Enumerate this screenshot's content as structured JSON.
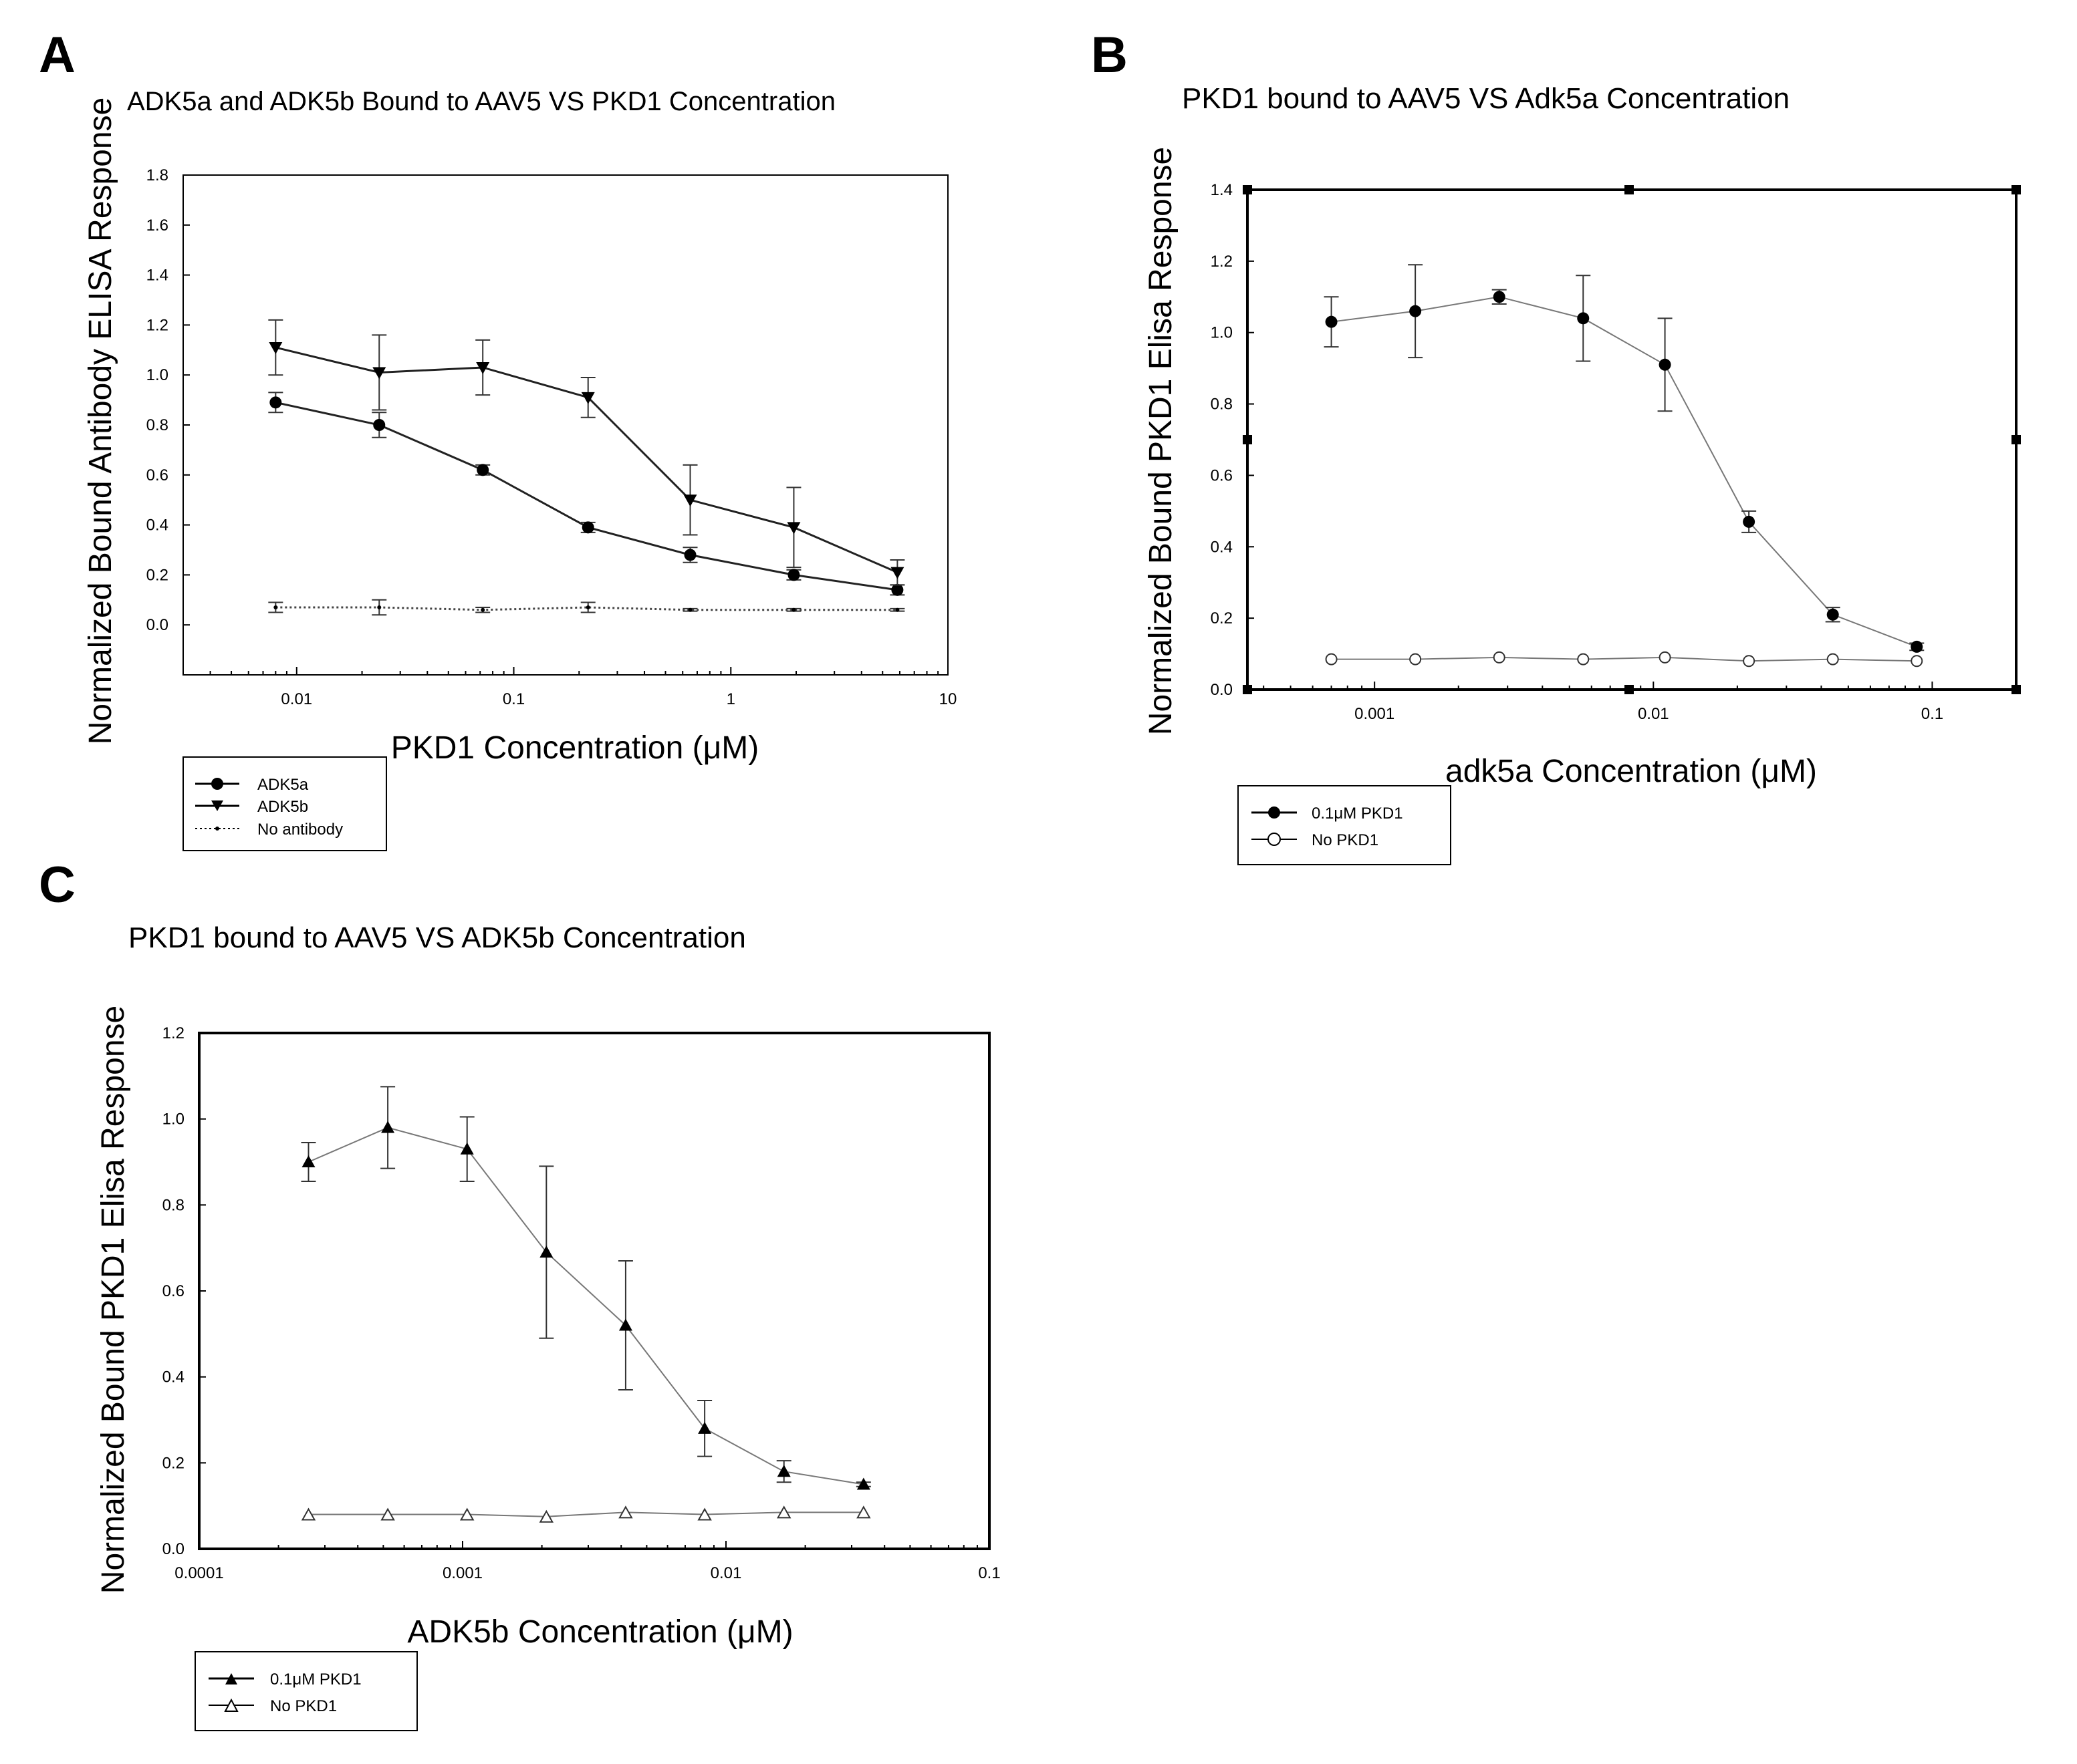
{
  "chart_data": [
    {
      "panel": "A",
      "type": "line",
      "title": "ADK5a and ADK5b Bound to AAV5 VS PKD1 Concentration",
      "xlabel": "PKD1 Concentration (μM)",
      "ylabel": "Normalized Bound Antibody ELISA Response",
      "xscale": "log",
      "xlim": [
        0.003,
        10
      ],
      "ylim": [
        -0.2,
        1.8
      ],
      "x_ticks": [
        0.01,
        0.1,
        1,
        10
      ],
      "x_tick_labels": [
        "0.01",
        "0.1",
        "1",
        "10"
      ],
      "y_ticks": [
        0.0,
        0.2,
        0.4,
        0.6,
        0.8,
        1.0,
        1.2,
        1.4,
        1.6,
        1.8
      ],
      "y_tick_labels": [
        "0.0",
        "0.2",
        "0.4",
        "0.6",
        "0.8",
        "1.0",
        "1.2",
        "1.4",
        "1.6",
        "1.8"
      ],
      "legend_position": "below-left",
      "series": [
        {
          "name": "ADK5a",
          "marker": "circle",
          "line": "solid",
          "x": [
            0.008,
            0.024,
            0.072,
            0.22,
            0.65,
            1.95,
            5.85
          ],
          "y": [
            0.89,
            0.8,
            0.62,
            0.39,
            0.28,
            0.2,
            0.14
          ],
          "err": [
            0.04,
            0.05,
            0.02,
            0.02,
            0.03,
            0.02,
            0.02
          ]
        },
        {
          "name": "ADK5b",
          "marker": "triangle-down",
          "line": "solid",
          "x": [
            0.008,
            0.024,
            0.072,
            0.22,
            0.65,
            1.95,
            5.85
          ],
          "y": [
            1.11,
            1.01,
            1.03,
            0.91,
            0.5,
            0.39,
            0.21
          ],
          "err": [
            0.11,
            0.15,
            0.11,
            0.08,
            0.14,
            0.16,
            0.05
          ]
        },
        {
          "name": "No antibody",
          "marker": "dot",
          "line": "dotted",
          "x": [
            0.008,
            0.024,
            0.072,
            0.22,
            0.65,
            1.95,
            5.85
          ],
          "y": [
            0.07,
            0.07,
            0.06,
            0.07,
            0.06,
            0.06,
            0.06
          ],
          "err": [
            0.02,
            0.03,
            0.01,
            0.02,
            0.005,
            0.005,
            0.005
          ]
        }
      ]
    },
    {
      "panel": "B",
      "type": "line",
      "title": "PKD1 bound to AAV5 VS Adk5a Concentration",
      "xlabel": "adk5a Concentration (μM)",
      "ylabel": "Normalized Bound PKD1 Elisa Response",
      "xscale": "log",
      "xlim": [
        0.00035,
        0.2
      ],
      "ylim": [
        0.0,
        1.4
      ],
      "x_ticks": [
        0.001,
        0.01,
        0.1
      ],
      "x_tick_labels": [
        "0.001",
        "0.01",
        "0.1"
      ],
      "y_ticks": [
        0.0,
        0.2,
        0.4,
        0.6,
        0.8,
        1.0,
        1.2,
        1.4
      ],
      "y_tick_labels": [
        "0.0",
        "0.2",
        "0.4",
        "0.6",
        "0.8",
        "1.0",
        "1.2",
        "1.4"
      ],
      "legend_position": "below-left",
      "series": [
        {
          "name": "0.1μM PKD1",
          "marker": "circle",
          "line": "solid",
          "x": [
            0.0007,
            0.0014,
            0.0028,
            0.0056,
            0.011,
            0.022,
            0.044,
            0.088
          ],
          "y": [
            1.03,
            1.06,
            1.1,
            1.04,
            0.91,
            0.47,
            0.21,
            0.12
          ],
          "err": [
            0.07,
            0.13,
            0.02,
            0.12,
            0.13,
            0.03,
            0.02,
            0.01
          ]
        },
        {
          "name": "No PKD1",
          "marker": "circle-open",
          "line": "solid",
          "x": [
            0.0007,
            0.0014,
            0.0028,
            0.0056,
            0.011,
            0.022,
            0.044,
            0.088
          ],
          "y": [
            0.085,
            0.085,
            0.09,
            0.085,
            0.09,
            0.08,
            0.085,
            0.08
          ],
          "err": [
            0,
            0,
            0,
            0,
            0,
            0,
            0,
            0
          ]
        }
      ]
    },
    {
      "panel": "C",
      "type": "line",
      "title": "PKD1 bound to AAV5 VS ADK5b Concentration",
      "xlabel": "ADK5b Concentration (μM)",
      "ylabel": "Normalized Bound PKD1 Elisa Response",
      "xscale": "log",
      "xlim": [
        0.0001,
        0.1
      ],
      "ylim": [
        0.0,
        1.2
      ],
      "x_ticks": [
        0.0001,
        0.001,
        0.01,
        0.1
      ],
      "x_tick_labels": [
        "0.0001",
        "0.001",
        "0.01",
        "0.1"
      ],
      "y_ticks": [
        0.0,
        0.2,
        0.4,
        0.6,
        0.8,
        1.0,
        1.2
      ],
      "y_tick_labels": [
        "0.0",
        "0.2",
        "0.4",
        "0.6",
        "0.8",
        "1.0",
        "1.2"
      ],
      "legend_position": "below-left",
      "series": [
        {
          "name": "0.1μM PKD1",
          "marker": "triangle-up",
          "line": "solid",
          "x": [
            0.00026,
            0.00052,
            0.00104,
            0.00208,
            0.00416,
            0.0083,
            0.0166,
            0.0333
          ],
          "y": [
            0.9,
            0.98,
            0.93,
            0.69,
            0.52,
            0.28,
            0.18,
            0.15
          ],
          "err": [
            0.045,
            0.095,
            0.075,
            0.2,
            0.15,
            0.065,
            0.025,
            0.005
          ]
        },
        {
          "name": "No PKD1",
          "marker": "triangle-open",
          "line": "solid",
          "x": [
            0.00026,
            0.00052,
            0.00104,
            0.00208,
            0.00416,
            0.0083,
            0.0166,
            0.0333
          ],
          "y": [
            0.08,
            0.08,
            0.08,
            0.075,
            0.085,
            0.08,
            0.085,
            0.085
          ],
          "err": [
            0,
            0,
            0,
            0,
            0,
            0,
            0,
            0
          ]
        }
      ]
    }
  ]
}
